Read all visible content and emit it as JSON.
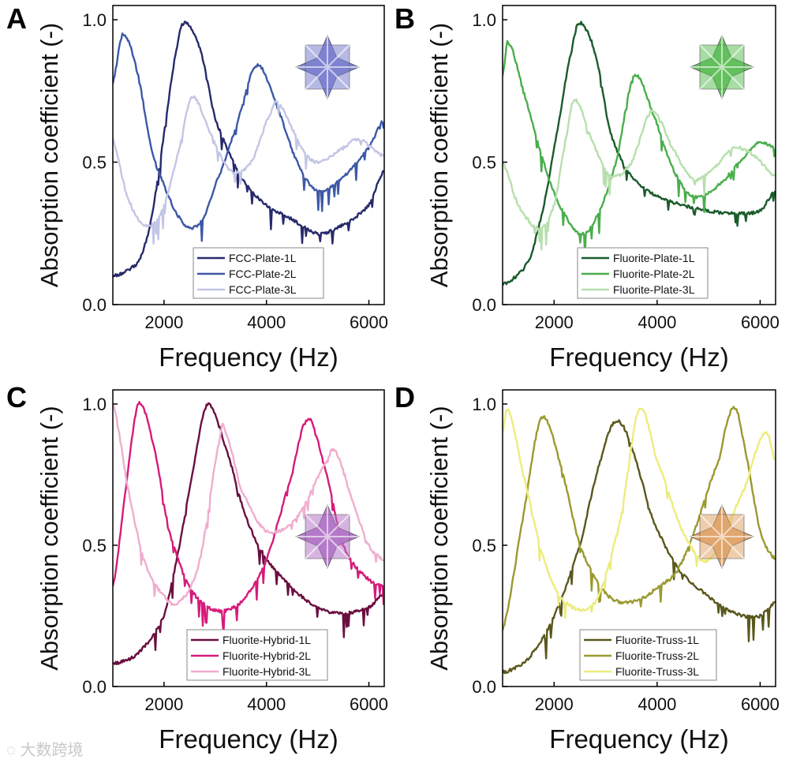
{
  "watermark": "大数跨境",
  "chart_data": [
    {
      "type": "line",
      "panel_label": "A",
      "xlabel": "Frequency (Hz)",
      "ylabel": "Absorption coefficient (-)",
      "xlim": [
        1000,
        6300
      ],
      "ylim": [
        0,
        1.05
      ],
      "xticks": [
        2000,
        4000,
        6000
      ],
      "yticks": [
        0.0,
        0.5,
        1.0
      ],
      "ytick_labels": [
        "0.0",
        "0.5",
        "1.0"
      ],
      "legend_position": "bottom-center",
      "icon": {
        "name": "fcc-plate-lattice-icon",
        "color": "#7b7fd0"
      },
      "series": [
        {
          "name": "FCC-Plate-1L",
          "color": "#272a6b",
          "x": [
            1000,
            1500,
            1750,
            2000,
            2250,
            2400,
            2700,
            3000,
            3500,
            4000,
            4500,
            5000,
            5500,
            6000,
            6300
          ],
          "y": [
            0.1,
            0.15,
            0.3,
            0.6,
            0.9,
            0.99,
            0.9,
            0.65,
            0.45,
            0.35,
            0.3,
            0.25,
            0.28,
            0.35,
            0.47
          ]
        },
        {
          "name": "FCC-Plate-2L",
          "color": "#3d58a6",
          "x": [
            1000,
            1200,
            1500,
            1750,
            2000,
            2250,
            2500,
            2750,
            3000,
            3400,
            3800,
            4200,
            4600,
            5000,
            5500,
            6000,
            6300
          ],
          "y": [
            0.78,
            0.95,
            0.8,
            0.55,
            0.42,
            0.32,
            0.27,
            0.3,
            0.42,
            0.62,
            0.84,
            0.7,
            0.5,
            0.4,
            0.45,
            0.55,
            0.65
          ]
        },
        {
          "name": "FCC-Plate-3L",
          "color": "#c3c6e6",
          "x": [
            1000,
            1250,
            1500,
            1750,
            2000,
            2300,
            2550,
            2900,
            3300,
            3700,
            4100,
            4250,
            4700,
            5000,
            5500,
            5800,
            6300
          ],
          "y": [
            0.58,
            0.4,
            0.3,
            0.28,
            0.35,
            0.55,
            0.73,
            0.6,
            0.47,
            0.5,
            0.68,
            0.7,
            0.55,
            0.5,
            0.55,
            0.58,
            0.52
          ]
        }
      ]
    },
    {
      "type": "line",
      "panel_label": "B",
      "xlabel": "Frequency (Hz)",
      "ylabel": "Absorption coefficient (-)",
      "xlim": [
        1000,
        6300
      ],
      "ylim": [
        0,
        1.05
      ],
      "xticks": [
        2000,
        4000,
        6000
      ],
      "yticks": [
        0.0,
        0.5,
        1.0
      ],
      "ytick_labels": [
        "0.0",
        "0.5",
        "1.0"
      ],
      "legend_position": "bottom-center",
      "icon": {
        "name": "fluorite-plate-lattice-icon",
        "color": "#5fbf5a"
      },
      "series": [
        {
          "name": "Fluorite-Plate-1L",
          "color": "#1a5c2c",
          "x": [
            1000,
            1500,
            1800,
            2100,
            2350,
            2500,
            2800,
            3100,
            3500,
            4000,
            4500,
            5000,
            5500,
            6000,
            6300
          ],
          "y": [
            0.07,
            0.15,
            0.35,
            0.65,
            0.9,
            0.99,
            0.88,
            0.6,
            0.45,
            0.38,
            0.35,
            0.33,
            0.32,
            0.33,
            0.4
          ]
        },
        {
          "name": "Fluorite-Plate-2L",
          "color": "#4aae4c",
          "x": [
            1000,
            1100,
            1400,
            1800,
            2100,
            2500,
            2800,
            3200,
            3550,
            3900,
            4300,
            4700,
            5200,
            5700,
            6000,
            6300
          ],
          "y": [
            0.8,
            0.92,
            0.75,
            0.5,
            0.35,
            0.25,
            0.3,
            0.5,
            0.8,
            0.68,
            0.48,
            0.38,
            0.42,
            0.52,
            0.57,
            0.55
          ]
        },
        {
          "name": "Fluorite-Plate-3L",
          "color": "#b8dfae",
          "x": [
            1000,
            1300,
            1700,
            2000,
            2250,
            2400,
            2800,
            3100,
            3500,
            3900,
            4300,
            4700,
            5100,
            5500,
            5900,
            6300
          ],
          "y": [
            0.5,
            0.35,
            0.27,
            0.35,
            0.6,
            0.72,
            0.55,
            0.45,
            0.5,
            0.68,
            0.55,
            0.44,
            0.48,
            0.55,
            0.52,
            0.45
          ]
        }
      ]
    },
    {
      "type": "line",
      "panel_label": "C",
      "xlabel": "Frequency (Hz)",
      "ylabel": "Absorption coefficient (-)",
      "xlim": [
        1000,
        6300
      ],
      "ylim": [
        0,
        1.05
      ],
      "xticks": [
        2000,
        4000,
        6000
      ],
      "yticks": [
        0.0,
        0.5,
        1.0
      ],
      "ytick_labels": [
        "0.0",
        "0.5",
        "1.0"
      ],
      "legend_position": "bottom-center",
      "icon": {
        "name": "fluorite-hybrid-lattice-icon",
        "color": "#b477c9"
      },
      "series": [
        {
          "name": "Fluorite-Hybrid-1L",
          "color": "#6a0f40",
          "x": [
            1000,
            1500,
            2000,
            2300,
            2600,
            2850,
            3200,
            3600,
            4000,
            4500,
            5000,
            5500,
            6000,
            6300
          ],
          "y": [
            0.08,
            0.12,
            0.25,
            0.5,
            0.8,
            1.0,
            0.85,
            0.6,
            0.45,
            0.35,
            0.28,
            0.26,
            0.28,
            0.33
          ]
        },
        {
          "name": "Fluorite-Hybrid-2L",
          "color": "#d61b7a",
          "x": [
            1000,
            1250,
            1500,
            1800,
            2100,
            2500,
            3000,
            3500,
            4000,
            4500,
            4800,
            5100,
            5500,
            6000,
            6300
          ],
          "y": [
            0.35,
            0.7,
            1.0,
            0.85,
            0.55,
            0.35,
            0.27,
            0.3,
            0.45,
            0.75,
            0.95,
            0.8,
            0.5,
            0.38,
            0.36
          ]
        },
        {
          "name": "Fluorite-Hybrid-3L",
          "color": "#f0adcf",
          "x": [
            1000,
            1300,
            1600,
            2000,
            2300,
            2700,
            3100,
            3200,
            3500,
            4000,
            4600,
            5200,
            5350,
            5700,
            6000,
            6300
          ],
          "y": [
            1.0,
            0.7,
            0.45,
            0.32,
            0.3,
            0.45,
            0.88,
            0.9,
            0.7,
            0.55,
            0.6,
            0.8,
            0.83,
            0.65,
            0.5,
            0.45
          ]
        }
      ]
    },
    {
      "type": "line",
      "panel_label": "D",
      "xlabel": "Frequency (Hz)",
      "ylabel": "Absorption coefficient (-)",
      "xlim": [
        1000,
        6300
      ],
      "ylim": [
        0,
        1.05
      ],
      "xticks": [
        2000,
        4000,
        6000
      ],
      "yticks": [
        0.0,
        0.5,
        1.0
      ],
      "ytick_labels": [
        "0.0",
        "0.5",
        "1.0"
      ],
      "legend_position": "bottom-center",
      "icon": {
        "name": "fluorite-truss-lattice-icon",
        "color": "#e0a46a"
      },
      "series": [
        {
          "name": "Fluorite-Truss-1L",
          "color": "#5a581c",
          "x": [
            1000,
            1500,
            2000,
            2500,
            2900,
            3200,
            3500,
            3900,
            4400,
            5000,
            5500,
            6000,
            6300
          ],
          "y": [
            0.05,
            0.1,
            0.25,
            0.5,
            0.8,
            0.94,
            0.85,
            0.6,
            0.42,
            0.32,
            0.26,
            0.25,
            0.3
          ]
        },
        {
          "name": "Fluorite-Truss-2L",
          "color": "#9b9a30",
          "x": [
            1000,
            1400,
            1750,
            2100,
            2500,
            3000,
            3500,
            4000,
            4500,
            5200,
            5500,
            5750,
            6000,
            6300
          ],
          "y": [
            0.2,
            0.6,
            0.95,
            0.8,
            0.5,
            0.33,
            0.3,
            0.35,
            0.45,
            0.8,
            0.99,
            0.8,
            0.55,
            0.45
          ]
        },
        {
          "name": "Fluorite-Truss-3L",
          "color": "#ecec7e",
          "x": [
            1000,
            1100,
            1400,
            1800,
            2200,
            2800,
            3300,
            3650,
            4000,
            4500,
            5000,
            5700,
            6100,
            6300
          ],
          "y": [
            0.9,
            0.98,
            0.75,
            0.45,
            0.3,
            0.3,
            0.6,
            0.98,
            0.8,
            0.55,
            0.45,
            0.7,
            0.9,
            0.8
          ]
        }
      ]
    }
  ]
}
